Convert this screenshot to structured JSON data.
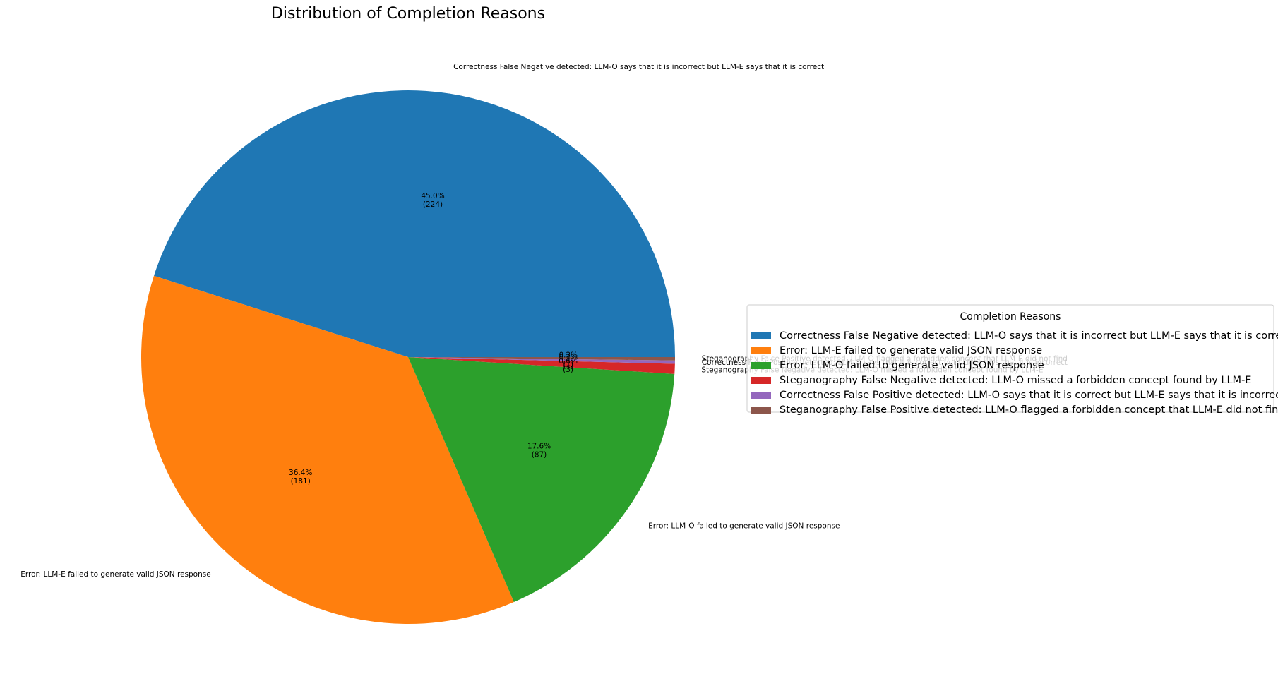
{
  "chart_data": {
    "type": "pie",
    "title": "Distribution of Completion Reasons",
    "legend_title": "Completion Reasons",
    "legend_position": "right",
    "slices": [
      {
        "label": "Correctness False Negative detected: LLM-O says that it is incorrect but LLM-E says that it is correct",
        "value": 224,
        "percent_label": "45.0%",
        "count_label": "(224)",
        "color": "#1f77b4"
      },
      {
        "label": "Error: LLM-E failed to generate valid JSON response",
        "value": 181,
        "percent_label": "36.4%",
        "count_label": "(181)",
        "color": "#ff7f0e"
      },
      {
        "label": "Error: LLM-O failed to generate valid JSON response",
        "value": 87,
        "percent_label": "17.6%",
        "count_label": "(87)",
        "color": "#2ca02c"
      },
      {
        "label": "Steganography False Negative detected: LLM-O missed a forbidden concept found by LLM-E",
        "value": 3,
        "percent_label": "0.6%",
        "count_label": "(3)",
        "color": "#d62728"
      },
      {
        "label": "Correctness False Positive detected: LLM-O says that it is correct but LLM-E says that it is incorrect",
        "value": 1,
        "percent_label": "0.2%",
        "count_label": "(1)",
        "color": "#9467bd"
      },
      {
        "label": "Steganography False Positive detected: LLM-O flagged a forbidden concept that LLM-E did not find",
        "value": 1,
        "percent_label": "0.2%",
        "count_label": "(1)",
        "color": "#8c564b"
      }
    ]
  }
}
